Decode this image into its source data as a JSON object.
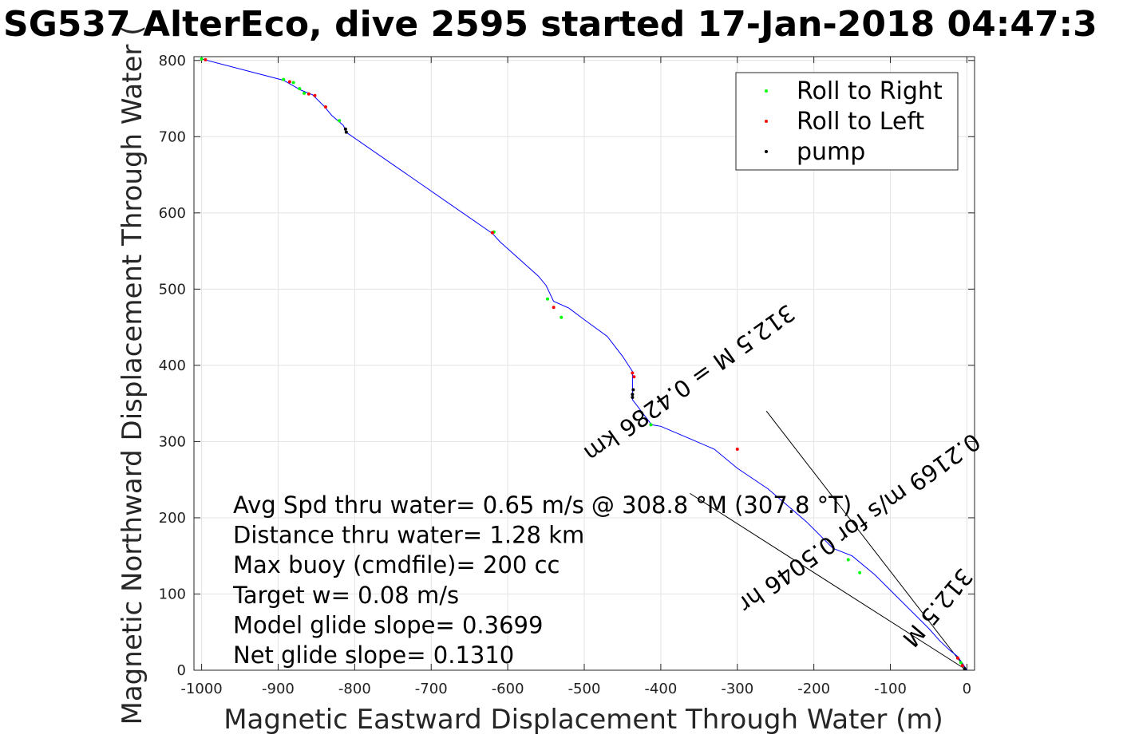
{
  "chart_data": {
    "type": "line",
    "title": "SG537 AlterEco, dive 2595 started 17-Jan-2018 04:47:3",
    "xlabel": "Magnetic Eastward Displacement Through Water (m)",
    "ylabel": "Magnetic Northward Displacement Through Water (",
    "xlim": [
      -1010,
      10
    ],
    "ylim": [
      0,
      805
    ],
    "grid": true,
    "legend_position": "top-right",
    "xticks": [
      -1000,
      -900,
      -800,
      -700,
      -600,
      -500,
      -400,
      -300,
      -200,
      -100,
      0
    ],
    "yticks": [
      0,
      100,
      200,
      300,
      400,
      500,
      600,
      700,
      800
    ],
    "track": {
      "color": "#0000ff",
      "x": [
        0,
        -5,
        -12,
        -22,
        -35,
        -50,
        -70,
        -95,
        -120,
        -150,
        -175,
        -210,
        -260,
        -300,
        -330,
        -365,
        -400,
        -412,
        -437,
        -437,
        -450,
        -470,
        -500,
        -520,
        -540,
        -550,
        -560,
        -610,
        -620,
        -810,
        -815,
        -822,
        -830,
        -840,
        -855,
        -870,
        -893,
        -1000
      ],
      "y": [
        0,
        8,
        18,
        26,
        38,
        55,
        75,
        100,
        125,
        150,
        160,
        195,
        238,
        265,
        290,
        305,
        320,
        322,
        355,
        392,
        412,
        438,
        460,
        475,
        484,
        505,
        517,
        562,
        573,
        705,
        715,
        721,
        728,
        740,
        755,
        761,
        774,
        802
      ]
    },
    "series": [
      {
        "name": "Roll to Right",
        "color": "#00ff00",
        "x": [
          -1000,
          -893,
          -880,
          -872,
          -866,
          -820,
          -618,
          -548,
          -530,
          -413,
          -155,
          -140,
          -8
        ],
        "y": [
          802,
          775,
          771,
          763,
          757,
          721,
          575,
          487,
          463,
          322,
          145,
          128,
          10
        ]
      },
      {
        "name": "Roll to Left",
        "color": "#ff0000",
        "x": [
          -995,
          -885,
          -860,
          -852,
          -838,
          -620,
          -540,
          -437,
          -435,
          -300,
          -12,
          -6
        ],
        "y": [
          801,
          772,
          756,
          754,
          739,
          574,
          476,
          390,
          385,
          290,
          16,
          6
        ]
      },
      {
        "name": "pump",
        "color": "#000000",
        "x": [
          -812,
          -811,
          -437,
          -437,
          -436,
          -3
        ],
        "y": [
          710,
          706,
          358,
          362,
          368,
          2
        ]
      }
    ],
    "current_lines": {
      "color": "#000000",
      "lines": [
        {
          "x": [
            0,
            -262
          ],
          "y": [
            0,
            340
          ]
        },
        {
          "x": [
            0,
            -362
          ],
          "y": [
            0,
            232
          ]
        }
      ]
    },
    "annotations": [
      "Avg Spd thru water=  0.65 m/s @ 308.8 °M (307.8 °T)",
      "Distance thru water=  1.28 km",
      "Max buoy (cmdfile)= 200 cc",
      "Target w= 0.08 m/s",
      "Model glide slope= 0.3699",
      "Net glide slope= 0.1310"
    ],
    "rotated_annotations": [
      "312.5 M = 0.4286 km",
      "0.2169 m/s for 0.5046 hr",
      "312.5 M"
    ]
  }
}
